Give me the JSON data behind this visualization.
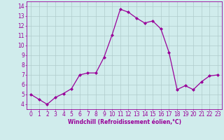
{
  "x": [
    0,
    1,
    2,
    3,
    4,
    5,
    6,
    7,
    8,
    9,
    10,
    11,
    12,
    13,
    14,
    15,
    16,
    17,
    18,
    19,
    20,
    21,
    22,
    23
  ],
  "y": [
    5.0,
    4.5,
    4.0,
    4.7,
    5.1,
    5.6,
    7.0,
    7.2,
    7.2,
    8.8,
    11.1,
    13.7,
    13.4,
    12.8,
    12.3,
    12.5,
    11.7,
    9.3,
    5.5,
    5.9,
    5.5,
    6.3,
    6.9,
    7.0
  ],
  "line_color": "#990099",
  "marker": "D",
  "markersize": 2.0,
  "linewidth": 0.9,
  "bg_color": "#d0ecec",
  "grid_color": "#b0cccc",
  "xlabel": "Windchill (Refroidissement éolien,°C)",
  "xlabel_fontsize": 5.5,
  "tick_fontsize": 5.5,
  "ylim": [
    3.5,
    14.5
  ],
  "xlim": [
    -0.5,
    23.5
  ],
  "yticks": [
    4,
    5,
    6,
    7,
    8,
    9,
    10,
    11,
    12,
    13,
    14
  ],
  "xticks": [
    0,
    1,
    2,
    3,
    4,
    5,
    6,
    7,
    8,
    9,
    10,
    11,
    12,
    13,
    14,
    15,
    16,
    17,
    18,
    19,
    20,
    21,
    22,
    23
  ]
}
